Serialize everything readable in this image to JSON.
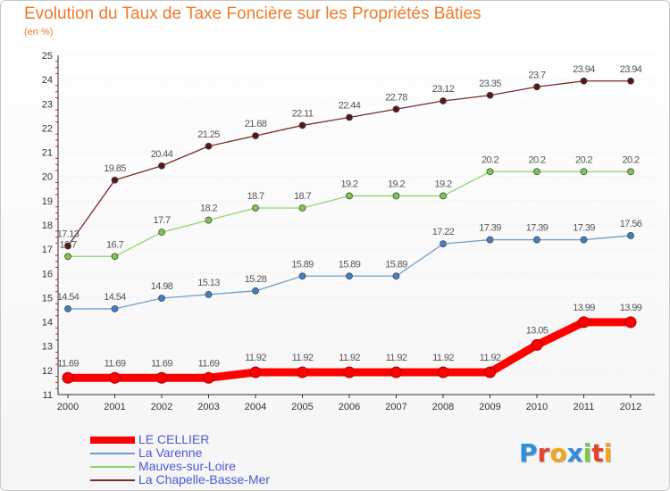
{
  "colors": {
    "title": "#ee7a2a",
    "axis": "#333333",
    "grid": "#e6e6e6",
    "label": "#555555",
    "legend_text": "#4a5ad6"
  },
  "chart_data": {
    "type": "line",
    "title": "Evolution du Taux de Taxe Foncière sur les Propriétés Bâties",
    "subtitle": "(en %)",
    "xlabel": "",
    "ylabel": "",
    "ylim": [
      11,
      25
    ],
    "yticks": [
      "11",
      "12",
      "13",
      "14",
      "15",
      "16",
      "17",
      "18",
      "19",
      "20",
      "21",
      "22",
      "23",
      "24",
      "25"
    ],
    "x": [
      "2000",
      "2001",
      "2002",
      "2003",
      "2004",
      "2005",
      "2006",
      "2007",
      "2008",
      "2009",
      "2010",
      "2011",
      "2012"
    ],
    "grid": "horizontal dotted",
    "legend_position": "bottom-left",
    "series": [
      {
        "name": "LE CELLIER",
        "color": "#ff0000",
        "marker": "#ff0000",
        "width": "thick",
        "values": [
          11.69,
          11.69,
          11.69,
          11.69,
          11.92,
          11.92,
          11.92,
          11.92,
          11.92,
          11.92,
          13.05,
          13.99,
          13.99
        ],
        "labels": [
          "11.69",
          "11.69",
          "11.69",
          "11.69",
          "11.92",
          "11.92",
          "11.92",
          "11.92",
          "11.92",
          "11.92",
          "13.05",
          "13.99",
          "13.99"
        ]
      },
      {
        "name": "La Varenne",
        "color": "#6f9ec9",
        "marker": "#3f82c8",
        "width": "thin",
        "values": [
          14.54,
          14.54,
          14.98,
          15.13,
          15.28,
          15.89,
          15.89,
          15.89,
          17.22,
          17.39,
          17.39,
          17.39,
          17.56
        ],
        "labels": [
          "14.54",
          "14.54",
          "14.98",
          "15.13",
          "15.28",
          "15.89",
          "15.89",
          "15.89",
          "17.22",
          "17.39",
          "17.39",
          "17.39",
          "17.56"
        ]
      },
      {
        "name": "Mauves-sur-Loire",
        "color": "#8fd46a",
        "marker": "#7cc94a",
        "width": "thin",
        "values": [
          16.7,
          16.7,
          17.7,
          18.2,
          18.7,
          18.7,
          19.2,
          19.2,
          19.2,
          20.2,
          20.2,
          20.2,
          20.2
        ],
        "labels": [
          "16.7",
          "16.7",
          "17.7",
          "18.2",
          "18.7",
          "18.7",
          "19.2",
          "19.2",
          "19.2",
          "20.2",
          "20.2",
          "20.2",
          "20.2"
        ]
      },
      {
        "name": "La Chapelle-Basse-Mer",
        "color": "#7b2a2a",
        "marker": "#5e1414",
        "width": "thin",
        "values": [
          17.13,
          19.85,
          20.44,
          21.25,
          21.68,
          22.11,
          22.44,
          22.78,
          23.12,
          23.35,
          23.7,
          23.94,
          23.94
        ],
        "labels": [
          "17.13",
          "19.85",
          "20.44",
          "21.25",
          "21.68",
          "22.11",
          "22.44",
          "22.78",
          "23.12",
          "23.35",
          "23.7",
          "23.94",
          "23.94"
        ]
      }
    ]
  },
  "logo": {
    "letters": [
      "P",
      "r",
      "o",
      "x",
      "i",
      "t",
      "i"
    ],
    "colors": [
      "#2f8fd8",
      "#e8412c",
      "#f2a51a",
      "#2f8fd8",
      "#7cc94a",
      "#e8412c",
      "#f2a51a"
    ]
  }
}
